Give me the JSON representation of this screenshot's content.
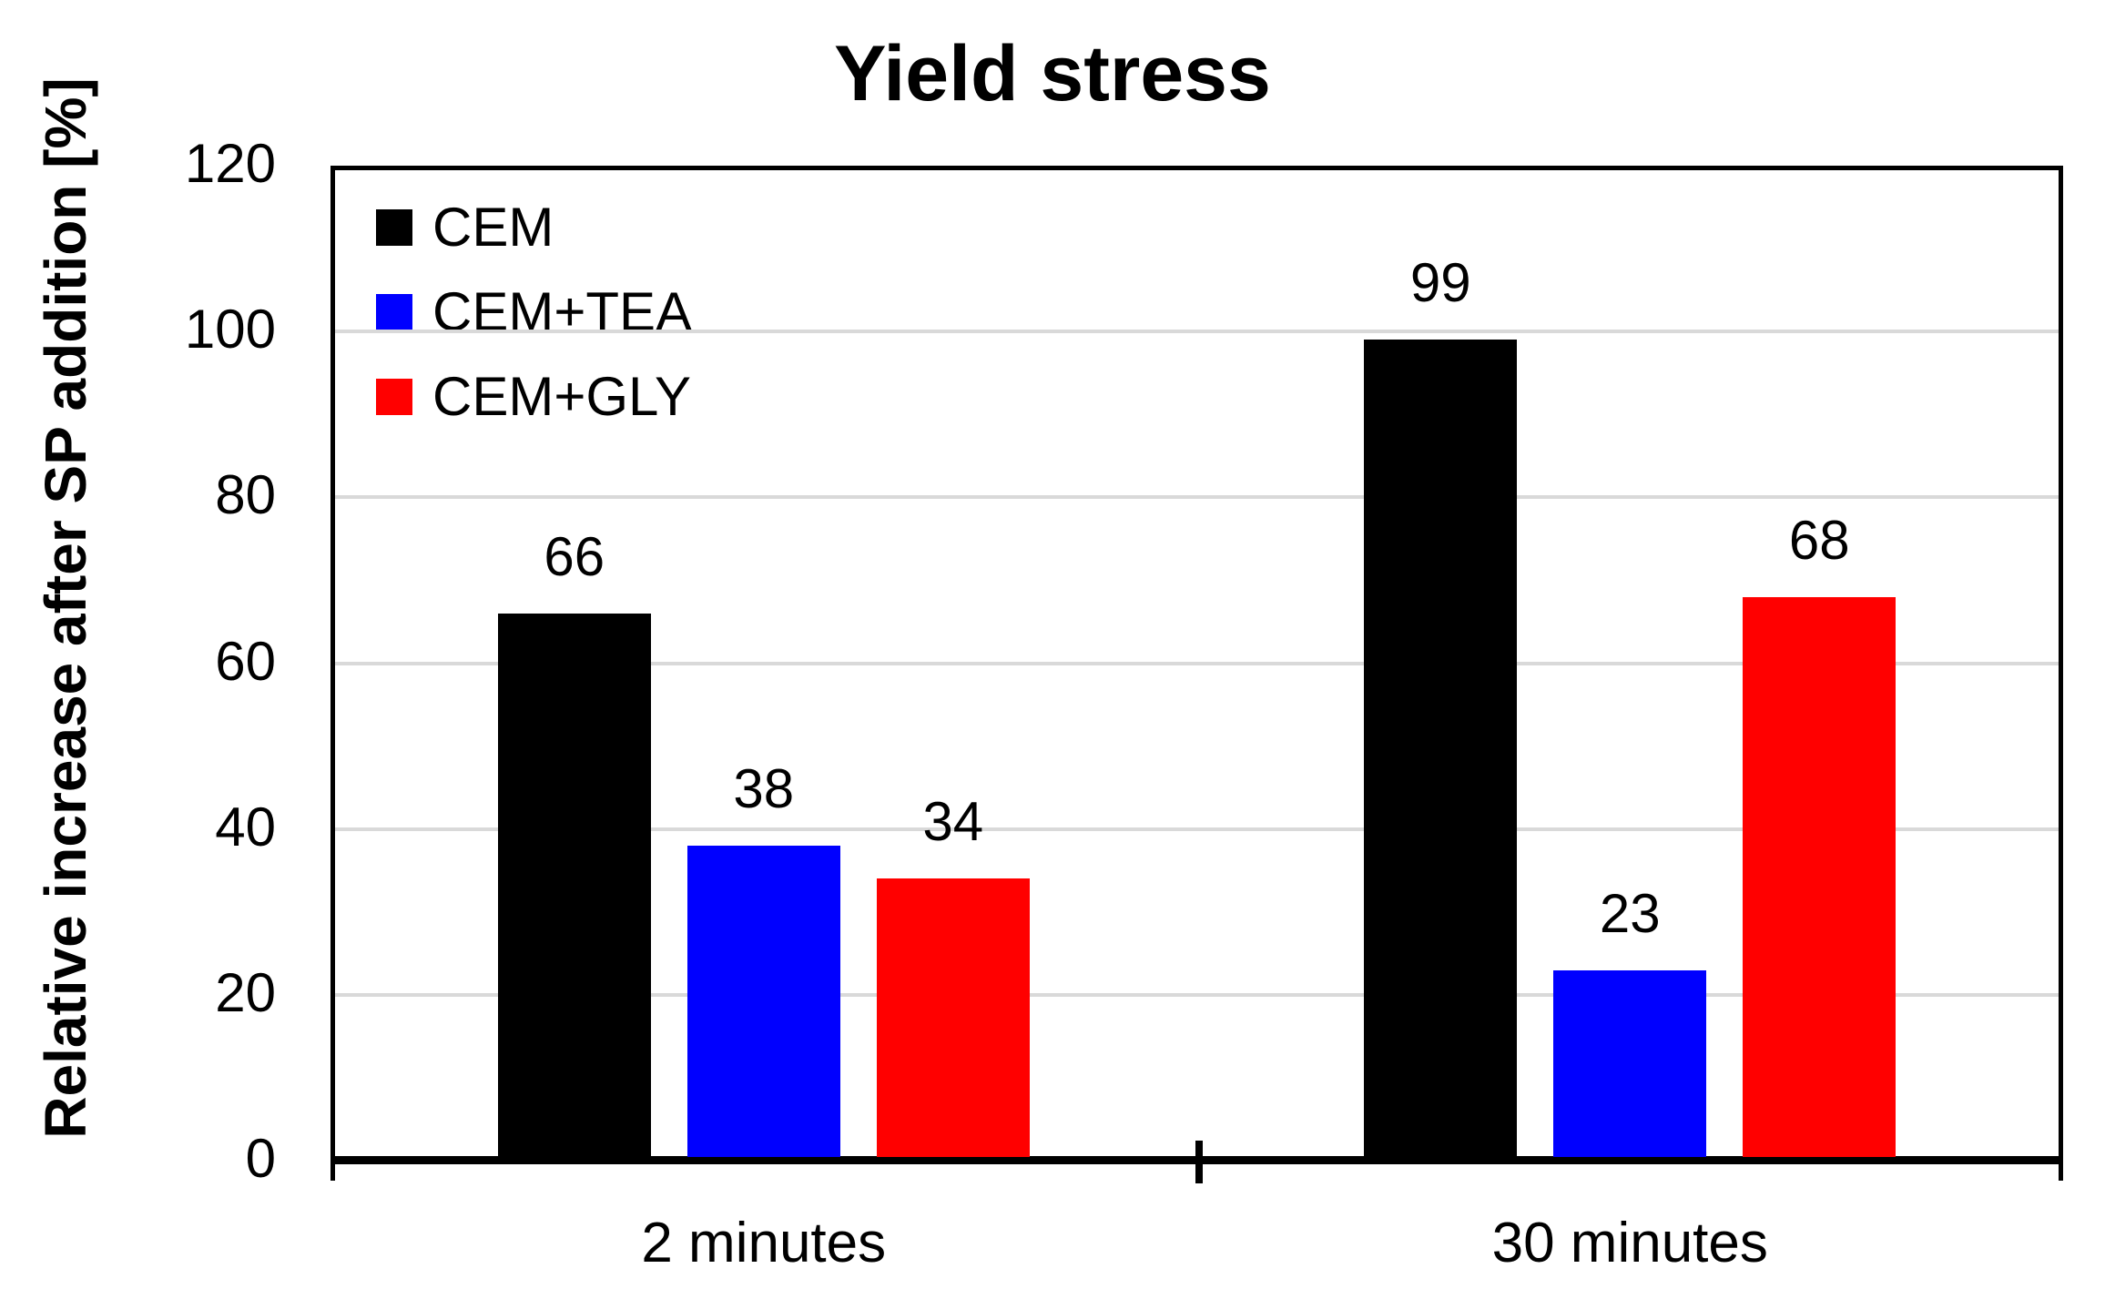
{
  "chart_data": {
    "type": "bar",
    "title": "Yield stress",
    "ylabel": "Relative increase after SP addition [%]",
    "xlabel": "",
    "categories": [
      "2 minutes",
      "30 minutes"
    ],
    "series": [
      {
        "name": "CEM",
        "color": "#000000",
        "values": [
          66,
          99
        ]
      },
      {
        "name": "CEM+TEA",
        "color": "#0000FF",
        "values": [
          38,
          23
        ]
      },
      {
        "name": "CEM+GLY",
        "color": "#FF0000",
        "values": [
          34,
          68
        ]
      }
    ],
    "ylim": [
      0,
      120
    ],
    "yticks": [
      0,
      20,
      40,
      60,
      80,
      100,
      120
    ],
    "grid": "horizontal",
    "gridline_color": "#D9D9D9",
    "axis_color": "#000000",
    "legend_position": "inside-top-left",
    "data_labels": true
  }
}
